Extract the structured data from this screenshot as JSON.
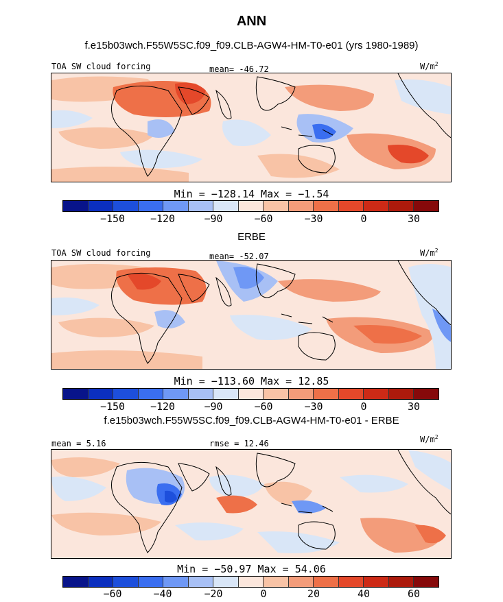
{
  "title": "ANN",
  "colors": {
    "scale": [
      "#08148a",
      "#0b2fbf",
      "#1d4fdc",
      "#3a6ef0",
      "#6f98f5",
      "#a8c0f5",
      "#d9e6f7",
      "#fbe6dc",
      "#f8c3a6",
      "#f39c7a",
      "#ee7048",
      "#e4482a",
      "#cd2a16",
      "#ac1a0c",
      "#86090a"
    ],
    "land": "#000000"
  },
  "panels": [
    {
      "heading": "f.e15b03wch.F55W5SC.f09_f09.CLB-AGW4-HM-T0-e01 (yrs 1980-1989)",
      "left_label": "TOA SW cloud forcing",
      "center_label": "mean= -46.72",
      "units": "W/m",
      "units_sup": "2",
      "minmax": "Min = −128.14 Max =  −1.54",
      "ticks": [
        "−150",
        "−120",
        "−90",
        "−60",
        "−30",
        "0",
        "30"
      ]
    },
    {
      "heading": "ERBE",
      "left_label": "TOA SW cloud forcing",
      "center_label": "mean= -52.07",
      "units": "W/m",
      "units_sup": "2",
      "minmax": "Min = −113.60 Max =  12.85",
      "ticks": [
        "−150",
        "−120",
        "−90",
        "−60",
        "−30",
        "0",
        "30"
      ]
    },
    {
      "heading": "f.e15b03wch.F55W5SC.f09_f09.CLB-AGW4-HM-T0-e01 - ERBE",
      "left_label": "mean =   5.16",
      "center_label": "rmse =  12.46",
      "units": "W/m",
      "units_sup": "2",
      "minmax": "Min = −50.97 Max =  54.06",
      "ticks": [
        "−60",
        "−40",
        "−20",
        "0",
        "20",
        "40",
        "60"
      ]
    }
  ]
}
